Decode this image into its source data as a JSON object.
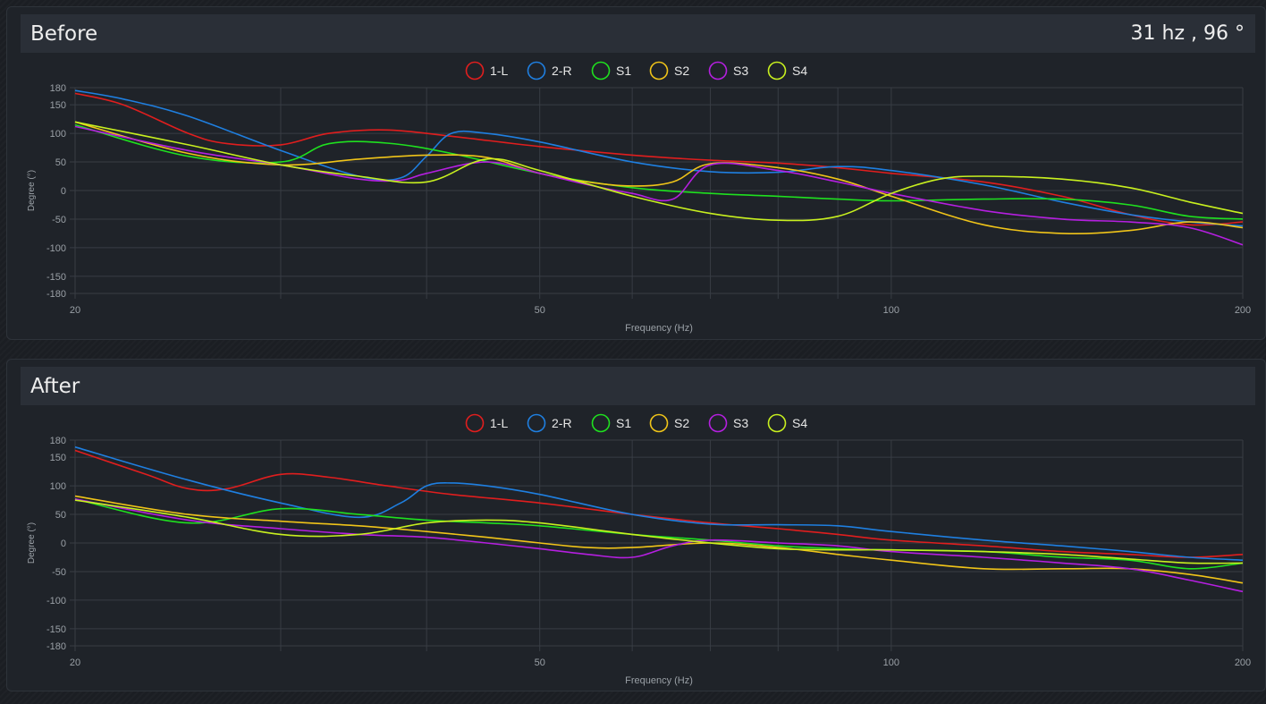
{
  "colors": {
    "1-L": "#e01e1e",
    "2-R": "#1f7fe0",
    "S1": "#1fe01f",
    "S2": "#f0c419",
    "S3": "#b51fe0",
    "S4": "#c8f01f"
  },
  "panels": [
    {
      "title": "Before",
      "readout": "31 hz , 96 °",
      "chart_data": {
        "type": "line",
        "xscale": "log",
        "xlabel": "Frequency (Hz)",
        "ylabel": "Degree (°)",
        "xlim": [
          20,
          200
        ],
        "ylim": [
          -180,
          180
        ],
        "xticks": [
          20,
          50,
          100,
          200
        ],
        "yticks": [
          180,
          150,
          100,
          50,
          0,
          -50,
          -100,
          -150,
          -180
        ],
        "legend_position": "top-center",
        "grid": true,
        "series": [
          {
            "name": "1-L",
            "x": [
              20,
              22,
              25,
              27,
              30,
              33,
              37,
              42,
              50,
              60,
              70,
              80,
              90,
              100,
              120,
              140,
              160,
              180,
              200
            ],
            "y": [
              170,
              150,
              100,
              82,
              80,
              100,
              106,
              95,
              77,
              62,
              53,
              48,
              40,
              30,
              15,
              -10,
              -42,
              -60,
              -55
            ]
          },
          {
            "name": "2-R",
            "x": [
              20,
              22,
              25,
              30,
              35,
              38,
              40,
              42,
              45,
              50,
              60,
              70,
              80,
              90,
              100,
              120,
              140,
              160,
              180,
              200
            ],
            "y": [
              175,
              160,
              130,
              70,
              25,
              22,
              60,
              100,
              100,
              85,
              50,
              33,
              32,
              42,
              35,
              10,
              -20,
              -42,
              -55,
              -62
            ]
          },
          {
            "name": "S1",
            "x": [
              20,
              25,
              30,
              33,
              37,
              42,
              50,
              60,
              70,
              80,
              90,
              100,
              120,
              140,
              160,
              180,
              200
            ],
            "y": [
              115,
              60,
              50,
              82,
              83,
              65,
              30,
              5,
              -5,
              -10,
              -15,
              -18,
              -15,
              -15,
              -25,
              -45,
              -50
            ]
          },
          {
            "name": "S2",
            "x": [
              20,
              25,
              30,
              35,
              40,
              45,
              50,
              55,
              60,
              65,
              70,
              80,
              90,
              100,
              120,
              140,
              160,
              180,
              200
            ],
            "y": [
              120,
              65,
              45,
              55,
              62,
              58,
              30,
              15,
              8,
              15,
              47,
              40,
              20,
              -10,
              -60,
              -75,
              -70,
              -55,
              -65
            ]
          },
          {
            "name": "S3",
            "x": [
              20,
              25,
              30,
              35,
              38,
              40,
              45,
              50,
              55,
              60,
              65,
              70,
              80,
              90,
              100,
              120,
              140,
              160,
              180,
              200
            ],
            "y": [
              112,
              70,
              45,
              20,
              18,
              30,
              50,
              30,
              10,
              -5,
              -15,
              45,
              35,
              15,
              -5,
              -35,
              -50,
              -55,
              -65,
              -95
            ]
          },
          {
            "name": "S4",
            "x": [
              20,
              25,
              30,
              35,
              40,
              45,
              50,
              60,
              70,
              80,
              90,
              100,
              110,
              120,
              140,
              160,
              180,
              200
            ],
            "y": [
              120,
              80,
              45,
              25,
              15,
              55,
              35,
              -10,
              -40,
              -52,
              -45,
              -5,
              20,
              25,
              20,
              5,
              -20,
              -40
            ]
          }
        ]
      }
    },
    {
      "title": "After",
      "readout": "",
      "chart_data": {
        "type": "line",
        "xscale": "log",
        "xlabel": "Frequency (Hz)",
        "ylabel": "Degree (°)",
        "xlim": [
          20,
          200
        ],
        "ylim": [
          -180,
          180
        ],
        "xticks": [
          20,
          50,
          100,
          200
        ],
        "yticks": [
          180,
          150,
          100,
          50,
          0,
          -50,
          -100,
          -150,
          -180
        ],
        "legend_position": "top-center",
        "grid": true,
        "series": [
          {
            "name": "1-L",
            "x": [
              20,
              23,
              25,
              27,
              30,
              33,
              37,
              42,
              50,
              60,
              70,
              80,
              90,
              100,
              120,
              140,
              160,
              180,
              200
            ],
            "y": [
              162,
              120,
              95,
              95,
              120,
              115,
              100,
              85,
              70,
              50,
              35,
              25,
              15,
              5,
              -5,
              -15,
              -20,
              -25,
              -20
            ]
          },
          {
            "name": "2-R",
            "x": [
              20,
              25,
              30,
              35,
              38,
              40,
              42,
              45,
              50,
              60,
              70,
              80,
              90,
              100,
              120,
              140,
              160,
              180,
              200
            ],
            "y": [
              168,
              110,
              70,
              45,
              70,
              100,
              105,
              100,
              85,
              50,
              33,
              32,
              30,
              20,
              5,
              -5,
              -15,
              -25,
              -30
            ]
          },
          {
            "name": "S1",
            "x": [
              20,
              25,
              30,
              35,
              40,
              45,
              50,
              60,
              70,
              80,
              90,
              100,
              120,
              140,
              160,
              180,
              200
            ],
            "y": [
              77,
              35,
              60,
              50,
              40,
              35,
              30,
              15,
              5,
              -5,
              -10,
              -12,
              -15,
              -25,
              -30,
              -45,
              -35
            ]
          },
          {
            "name": "S2",
            "x": [
              20,
              25,
              30,
              35,
              40,
              45,
              50,
              55,
              60,
              70,
              80,
              90,
              100,
              120,
              140,
              160,
              180,
              200
            ],
            "y": [
              82,
              50,
              38,
              30,
              20,
              10,
              0,
              -8,
              -8,
              0,
              -8,
              -20,
              -30,
              -45,
              -45,
              -45,
              -55,
              -70
            ]
          },
          {
            "name": "S3",
            "x": [
              20,
              25,
              30,
              35,
              40,
              45,
              50,
              55,
              60,
              65,
              70,
              80,
              90,
              100,
              120,
              140,
              160,
              180,
              200
            ],
            "y": [
              77,
              40,
              25,
              15,
              10,
              0,
              -10,
              -20,
              -25,
              -5,
              5,
              0,
              -5,
              -15,
              -25,
              -35,
              -45,
              -65,
              -85
            ]
          },
          {
            "name": "S4",
            "x": [
              20,
              25,
              30,
              35,
              40,
              45,
              50,
              60,
              70,
              80,
              90,
              100,
              120,
              140,
              160,
              180,
              200
            ],
            "y": [
              75,
              45,
              15,
              15,
              35,
              40,
              35,
              15,
              0,
              -10,
              -12,
              -12,
              -15,
              -20,
              -28,
              -35,
              -35
            ]
          }
        ]
      }
    }
  ]
}
